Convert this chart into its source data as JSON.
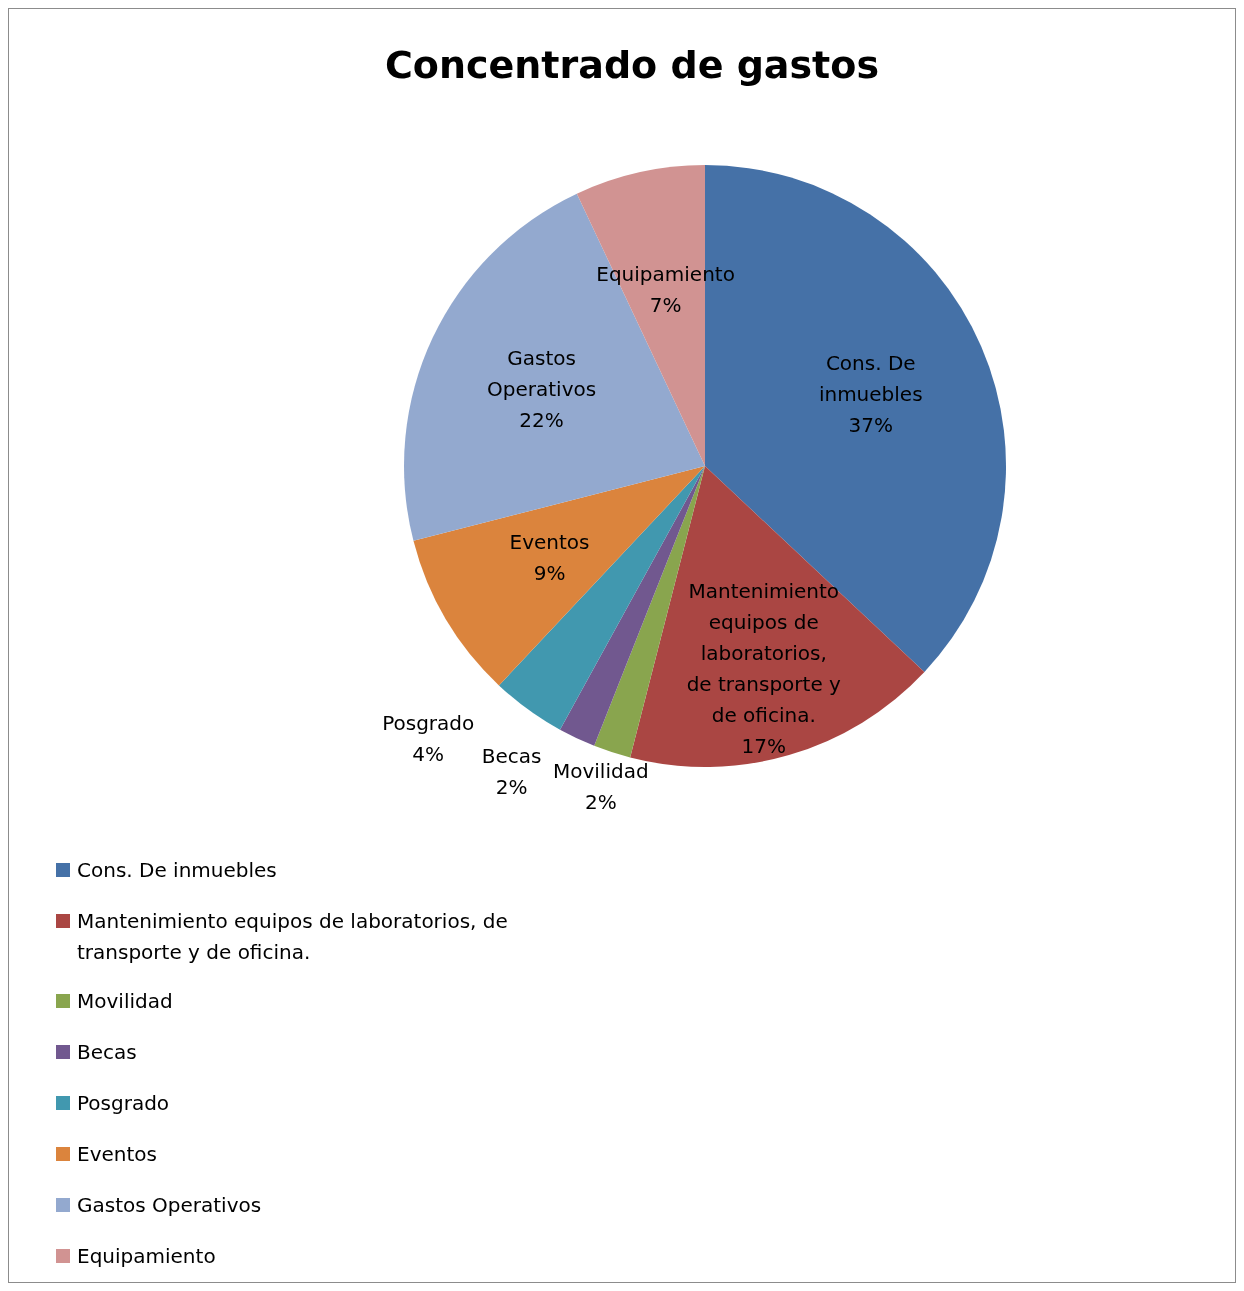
{
  "chart_data": {
    "type": "pie",
    "title": "Concentrado de gastos",
    "categories": [
      "Cons. De inmuebles",
      "Mantenimiento equipos de laboratorios, de transporte y de oficina.",
      "Movilidad",
      "Becas",
      "Posgrado",
      "Eventos",
      "Gastos Operativos",
      "Equipamiento"
    ],
    "values": [
      37,
      17,
      2,
      2,
      4,
      9,
      22,
      7
    ],
    "colors": [
      "#4571a7",
      "#aa4643",
      "#89a54e",
      "#71588f",
      "#4198af",
      "#db843d",
      "#93a9cf",
      "#d19392"
    ],
    "value_labels": [
      "37%",
      "17%",
      "2%",
      "2%",
      "4%",
      "9%",
      "22%",
      "7%"
    ],
    "legend": "bottom left"
  }
}
